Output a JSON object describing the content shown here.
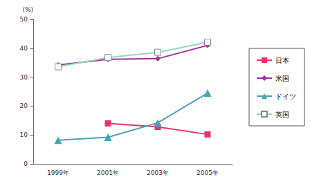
{
  "chart_data": {
    "type": "line",
    "y_label": "(%)",
    "categories": [
      "1999年",
      "2001年",
      "2003年",
      "2005年"
    ],
    "series": [
      {
        "name": "日本",
        "color": "#e6336e",
        "marker": "square",
        "values": [
          null,
          14.0,
          12.8,
          10.2
        ]
      },
      {
        "name": "米国",
        "color": "#993399",
        "marker": "diamond",
        "values": [
          34.2,
          36.2,
          36.4,
          41.0
        ]
      },
      {
        "name": "ドイツ",
        "color": "#4aa3b5",
        "marker": "triangle",
        "values": [
          8.2,
          9.2,
          14.2,
          24.5
        ]
      },
      {
        "name": "英国",
        "color": "#99d4c0",
        "marker": "hollow_square",
        "values": [
          33.6,
          36.8,
          38.6,
          42.1
        ]
      }
    ],
    "ylim": [
      0,
      50
    ],
    "yticks": [
      0,
      10,
      20,
      30,
      40,
      50
    ],
    "grid": false,
    "legend": "right"
  }
}
